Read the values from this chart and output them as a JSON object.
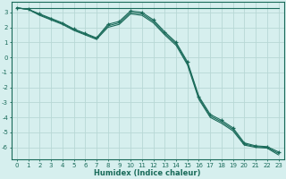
{
  "xlabel": "Humidex (Indice chaleur)",
  "bg_color": "#d6efee",
  "grid_color": "#b8d8d5",
  "line_color": "#1a6b5a",
  "xlim": [
    -0.5,
    23.5
  ],
  "ylim": [
    -6.8,
    3.7
  ],
  "yticks": [
    3,
    2,
    1,
    0,
    -1,
    -2,
    -3,
    -4,
    -5,
    -6
  ],
  "xticks": [
    0,
    1,
    2,
    3,
    4,
    5,
    6,
    7,
    8,
    9,
    10,
    11,
    12,
    13,
    14,
    15,
    16,
    17,
    18,
    19,
    20,
    21,
    22,
    23
  ],
  "series": [
    {
      "x": [
        0,
        1,
        2,
        3,
        4,
        5,
        6,
        7,
        8,
        9,
        10,
        11,
        12,
        13,
        14,
        15,
        16,
        17,
        18,
        19,
        20,
        21,
        22,
        23
      ],
      "y": [
        3.3,
        3.3,
        3.3,
        3.3,
        3.3,
        3.3,
        3.3,
        3.3,
        3.3,
        3.3,
        3.3,
        3.3,
        3.3,
        3.3,
        3.3,
        3.3,
        3.3,
        3.3,
        3.3,
        3.3,
        3.3,
        3.3,
        3.3,
        3.3
      ],
      "marker": null,
      "linestyle": "-"
    },
    {
      "x": [
        0,
        1,
        2,
        3,
        4,
        5,
        6,
        7,
        8,
        9,
        10,
        11,
        12,
        13,
        14,
        15,
        16,
        17,
        18,
        19,
        20,
        21,
        22,
        23
      ],
      "y": [
        3.3,
        3.2,
        2.9,
        2.6,
        2.3,
        1.9,
        1.6,
        1.3,
        2.2,
        2.4,
        3.1,
        3.0,
        2.5,
        1.7,
        1.0,
        -0.3,
        -2.6,
        -3.8,
        -4.2,
        -4.7,
        -5.7,
        -5.9,
        -5.95,
        -6.3
      ],
      "marker": "+",
      "linestyle": "-"
    },
    {
      "x": [
        0,
        1,
        2,
        3,
        4,
        5,
        6,
        7,
        8,
        9,
        10,
        11,
        12,
        13,
        14,
        15,
        16,
        17,
        18,
        19,
        20,
        21,
        22,
        23
      ],
      "y": [
        3.3,
        3.2,
        2.8,
        2.5,
        2.2,
        1.8,
        1.5,
        1.2,
        2.0,
        2.2,
        2.9,
        2.8,
        2.3,
        1.5,
        0.8,
        -0.5,
        -2.8,
        -4.0,
        -4.4,
        -4.9,
        -5.85,
        -6.0,
        -6.05,
        -6.5
      ],
      "marker": null,
      "linestyle": "-"
    },
    {
      "x": [
        0,
        1,
        2,
        3,
        4,
        5,
        6,
        7,
        8,
        9,
        10,
        11,
        12,
        13,
        14,
        15,
        16,
        17,
        18,
        19,
        20,
        21,
        22,
        23
      ],
      "y": [
        3.3,
        3.2,
        2.85,
        2.55,
        2.25,
        1.85,
        1.55,
        1.25,
        2.1,
        2.3,
        3.0,
        2.9,
        2.4,
        1.6,
        0.9,
        -0.4,
        -2.7,
        -3.9,
        -4.3,
        -4.8,
        -5.78,
        -5.95,
        -6.0,
        -6.4
      ],
      "marker": null,
      "linestyle": "-"
    }
  ]
}
